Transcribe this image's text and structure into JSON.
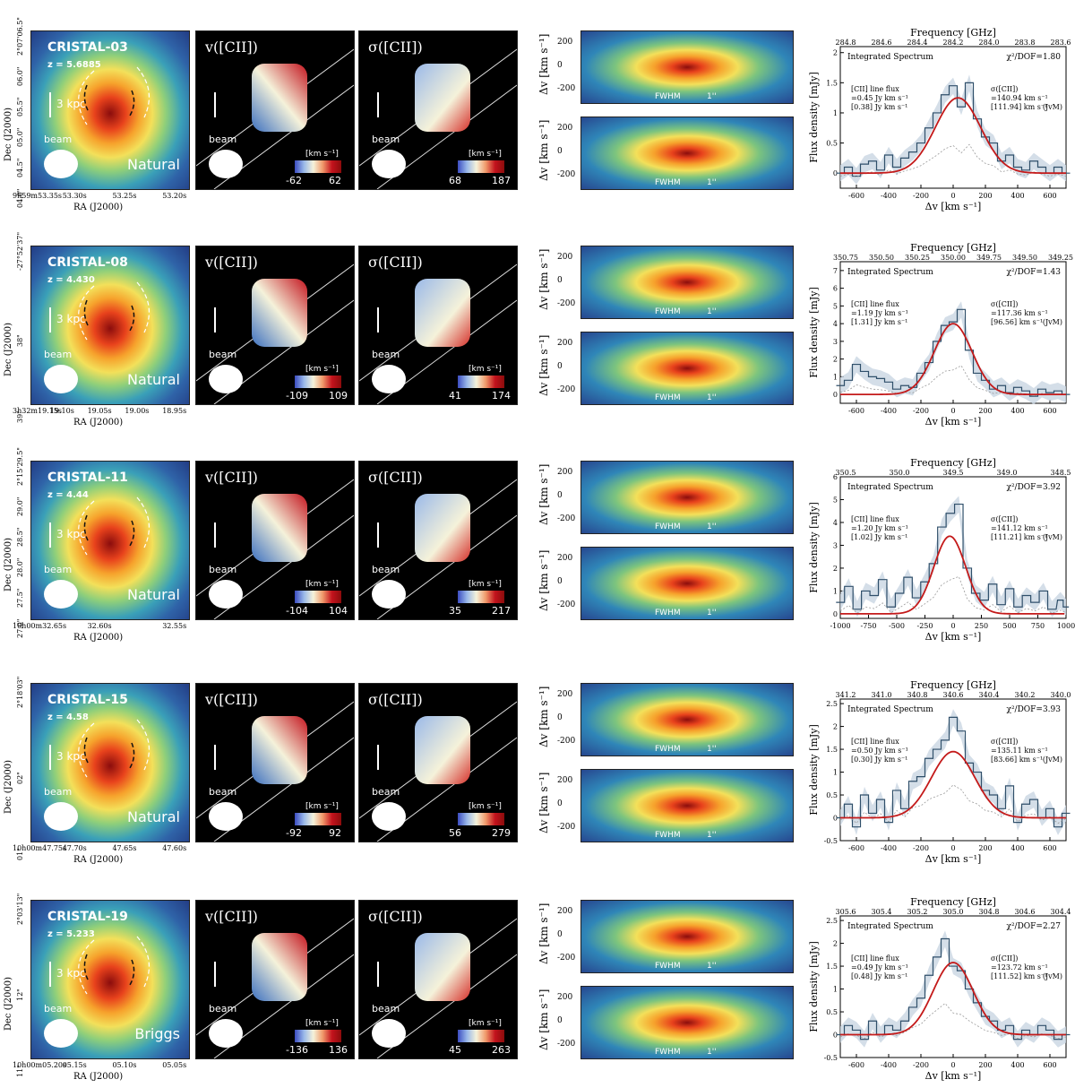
{
  "common": {
    "ra_label": "RA (J2000)",
    "dec_label": "Dec (J2000)",
    "vel_title": "v([CII])",
    "disp_title": "σ([CII])",
    "kpc_label": "3 kpc",
    "beam_label": "beam",
    "kms_unit": "[km s⁻¹]",
    "pv_ylabel": "Δv [km s⁻¹]",
    "pv_ticks": [
      "200",
      "0",
      "-200"
    ],
    "fwhm_label": "FWHM",
    "arcsec_label": "1''",
    "spec_xlabel": "Δv [km s⁻¹]",
    "spec_ylabel": "Flux density [mJy]",
    "spec_toplabel": "Frequency [GHz]",
    "spec_title": "Integrated Spectrum",
    "flux_label": "[CII] line flux",
    "sigma_label": "σ([CII])",
    "jvm_label": "(JvM)"
  },
  "chart_data": [
    {
      "type": "line",
      "name": "CRISTAL-03",
      "redshift": "z = 5.6885",
      "weighting": "Natural",
      "ra_ticks": [
        "9h59m53.35s",
        "53.30s",
        "53.25s",
        "53.20s"
      ],
      "dec_ticks": [
        "2°07'06.5\"",
        "06.0\"",
        "05.5\"",
        "05.0\"",
        "04.5\"",
        "04.0\""
      ],
      "vel_range": [
        "-62",
        "62"
      ],
      "disp_range": [
        "68",
        "187"
      ],
      "freq_ticks": [
        "284.8",
        "284.6",
        "284.4",
        "284.2",
        "284.0",
        "283.8",
        "283.6"
      ],
      "chi2": "χ²/DOF=1.80",
      "flux": "=0.45 Jy km s⁻¹",
      "flux_jvm": "[0.38] Jy km s⁻¹",
      "sigma": "=140.94 km s⁻¹",
      "sigma_jvm": "[111.94] km s⁻¹",
      "xlim": [
        -700,
        700
      ],
      "ylim": [
        -0.25,
        2.1
      ],
      "xticks": [
        -600,
        -400,
        -200,
        0,
        200,
        400,
        600
      ],
      "yticks": [
        0.0,
        0.5,
        1.0,
        1.5,
        2.0
      ],
      "gauss": {
        "amp": 1.25,
        "mu": 30,
        "sigma": 141
      },
      "spectrum_x": [
        -700,
        -650,
        -600,
        -550,
        -500,
        -450,
        -400,
        -350,
        -300,
        -250,
        -200,
        -150,
        -100,
        -50,
        0,
        50,
        100,
        150,
        200,
        250,
        300,
        350,
        400,
        450,
        500,
        550,
        600,
        650,
        700
      ],
      "spectrum_y": [
        0.0,
        0.1,
        -0.05,
        0.15,
        0.2,
        0.05,
        0.3,
        0.1,
        0.25,
        0.35,
        0.5,
        0.75,
        1.0,
        1.3,
        1.45,
        1.1,
        1.5,
        0.9,
        0.6,
        0.5,
        0.2,
        0.3,
        0.1,
        0.05,
        0.2,
        0.1,
        0.0,
        0.1,
        0.0
      ]
    },
    {
      "type": "line",
      "name": "CRISTAL-08",
      "redshift": "z = 4.430",
      "weighting": "Natural",
      "ra_ticks": [
        "3h32m19.15s",
        "19.10s",
        "19.05s",
        "19.00s",
        "18.95s"
      ],
      "dec_ticks": [
        "-27°52'37\"",
        "38\"",
        "39\""
      ],
      "vel_range": [
        "-109",
        "109"
      ],
      "disp_range": [
        "41",
        "174"
      ],
      "freq_ticks": [
        "350.75",
        "350.50",
        "350.25",
        "350.00",
        "349.75",
        "349.50",
        "349.25"
      ],
      "chi2": "χ²/DOF=1.43",
      "flux": "=1.19 Jy km s⁻¹",
      "flux_jvm": "[1.31] Jy km s⁻¹",
      "sigma": "=117.36 km s⁻¹",
      "sigma_jvm": "[96.56] km s⁻¹",
      "xlim": [
        -700,
        700
      ],
      "ylim": [
        -0.5,
        7.5
      ],
      "xticks": [
        -600,
        -400,
        -200,
        0,
        200,
        400,
        600
      ],
      "yticks": [
        0,
        1,
        2,
        3,
        4,
        5,
        6,
        7
      ],
      "gauss": {
        "amp": 4.0,
        "mu": 0,
        "sigma": 117
      },
      "spectrum_x": [
        -700,
        -650,
        -600,
        -550,
        -500,
        -450,
        -400,
        -350,
        -300,
        -250,
        -200,
        -150,
        -100,
        -50,
        0,
        50,
        100,
        150,
        200,
        250,
        300,
        350,
        400,
        450,
        500,
        550,
        600,
        650,
        700
      ],
      "spectrum_y": [
        0.5,
        0.8,
        1.7,
        1.3,
        1.0,
        0.9,
        0.7,
        0.3,
        0.5,
        0.4,
        1.2,
        1.8,
        3.0,
        3.9,
        4.1,
        4.8,
        2.5,
        1.2,
        0.8,
        0.3,
        0.5,
        0.1,
        0.4,
        0.2,
        -0.1,
        0.3,
        0.1,
        0.2,
        0.0
      ]
    },
    {
      "type": "line",
      "name": "CRISTAL-11",
      "redshift": "z = 4.44",
      "weighting": "Natural",
      "ra_ticks": [
        "10h00m32.65s",
        "32.60s",
        "32.55s"
      ],
      "dec_ticks": [
        "2°15'29.5\"",
        "29.0\"",
        "28.5\"",
        "28.0\"",
        "27.5\"",
        "27.0\""
      ],
      "vel_range": [
        "-104",
        "104"
      ],
      "disp_range": [
        "35",
        "217"
      ],
      "freq_ticks": [
        "350.5",
        "350.0",
        "349.5",
        "349.0",
        "348.5"
      ],
      "chi2": "χ²/DOF=3.92",
      "flux": "=1.20 Jy km s⁻¹",
      "flux_jvm": "[1.02] Jy km s⁻¹",
      "sigma": "=141.12 km s⁻¹",
      "sigma_jvm": "[111.21] km s⁻¹",
      "xlim": [
        -1000,
        1000
      ],
      "ylim": [
        -0.2,
        6.0
      ],
      "xticks": [
        -1000,
        -750,
        -500,
        -250,
        0,
        250,
        500,
        750,
        1000
      ],
      "yticks": [
        0,
        1,
        2,
        3,
        4,
        5,
        6
      ],
      "gauss": {
        "amp": 3.4,
        "mu": -30,
        "sigma": 141
      },
      "spectrum_x": [
        -1000,
        -925,
        -850,
        -775,
        -700,
        -625,
        -550,
        -475,
        -400,
        -325,
        -250,
        -175,
        -100,
        -25,
        50,
        125,
        200,
        275,
        350,
        425,
        500,
        575,
        650,
        725,
        800,
        875,
        950,
        1000
      ],
      "spectrum_y": [
        0.5,
        1.2,
        0.2,
        1.0,
        0.8,
        1.5,
        0.3,
        0.9,
        1.6,
        0.7,
        1.4,
        2.2,
        3.8,
        4.4,
        4.8,
        2.0,
        0.9,
        0.6,
        1.3,
        0.4,
        1.1,
        0.3,
        0.8,
        0.5,
        1.0,
        0.2,
        0.6,
        0.3
      ]
    },
    {
      "type": "line",
      "name": "CRISTAL-15",
      "redshift": "z = 4.58",
      "weighting": "Natural",
      "ra_ticks": [
        "10h00m47.75s",
        "47.70s",
        "47.65s",
        "47.60s"
      ],
      "dec_ticks": [
        "2°18'03\"",
        "02\"",
        "01\""
      ],
      "vel_range": [
        "-92",
        "92"
      ],
      "disp_range": [
        "56",
        "279"
      ],
      "freq_ticks": [
        "341.2",
        "341.0",
        "340.8",
        "340.6",
        "340.4",
        "340.2",
        "340.0"
      ],
      "chi2": "χ²/DOF=3.93",
      "flux": "=0.50 Jy km s⁻¹",
      "flux_jvm": "[0.30] Jy km s⁻¹",
      "sigma": "=135.11 km s⁻¹",
      "sigma_jvm": "[83.66] km s⁻¹",
      "xlim": [
        -700,
        700
      ],
      "ylim": [
        -0.5,
        2.6
      ],
      "xticks": [
        -600,
        -400,
        -200,
        0,
        200,
        400,
        600
      ],
      "yticks": [
        -0.5,
        0.0,
        0.5,
        1.0,
        1.5,
        2.0,
        2.5
      ],
      "gauss": {
        "amp": 1.45,
        "mu": 0,
        "sigma": 135
      },
      "spectrum_x": [
        -700,
        -650,
        -600,
        -550,
        -500,
        -450,
        -400,
        -350,
        -300,
        -250,
        -200,
        -150,
        -100,
        -50,
        0,
        50,
        100,
        150,
        200,
        250,
        300,
        350,
        400,
        450,
        500,
        550,
        600,
        650,
        700
      ],
      "spectrum_y": [
        0.0,
        0.3,
        -0.2,
        0.5,
        0.1,
        0.4,
        -0.1,
        0.6,
        0.2,
        0.8,
        0.9,
        1.3,
        1.5,
        1.7,
        2.2,
        1.9,
        1.2,
        1.0,
        0.6,
        0.5,
        0.2,
        0.7,
        -0.1,
        0.3,
        0.4,
        0.0,
        0.2,
        -0.2,
        0.1
      ]
    },
    {
      "type": "line",
      "name": "CRISTAL-19",
      "redshift": "z = 5.233",
      "weighting": "Briggs",
      "ra_ticks": [
        "10h00m05.20s",
        "05.15s",
        "05.10s",
        "05.05s"
      ],
      "dec_ticks": [
        "2°03'13\"",
        "12\"",
        "11\""
      ],
      "vel_range": [
        "-136",
        "136"
      ],
      "disp_range": [
        "45",
        "263"
      ],
      "freq_ticks": [
        "305.6",
        "305.4",
        "305.2",
        "305.0",
        "304.8",
        "304.6",
        "304.4"
      ],
      "chi2": "χ²/DOF=2.27",
      "flux": "=0.49 Jy km s⁻¹",
      "flux_jvm": "[0.48] Jy km s⁻¹",
      "sigma": "=123.72 km s⁻¹",
      "sigma_jvm": "[111.52] km s⁻¹",
      "xlim": [
        -700,
        700
      ],
      "ylim": [
        -0.5,
        2.6
      ],
      "xticks": [
        -600,
        -400,
        -200,
        0,
        200,
        400,
        600
      ],
      "yticks": [
        -0.5,
        0.0,
        0.5,
        1.0,
        1.5,
        2.0,
        2.5
      ],
      "gauss": {
        "amp": 1.58,
        "mu": 0,
        "sigma": 124
      },
      "spectrum_x": [
        -700,
        -650,
        -600,
        -550,
        -500,
        -450,
        -400,
        -350,
        -300,
        -250,
        -200,
        -150,
        -100,
        -50,
        0,
        50,
        100,
        150,
        200,
        250,
        300,
        350,
        400,
        450,
        500,
        550,
        600,
        650,
        700
      ],
      "spectrum_y": [
        0.0,
        0.2,
        0.1,
        -0.1,
        0.3,
        0.0,
        0.2,
        0.1,
        0.3,
        0.6,
        0.8,
        1.3,
        1.7,
        2.1,
        1.5,
        1.4,
        1.0,
        0.7,
        0.4,
        0.3,
        0.1,
        0.2,
        -0.1,
        0.1,
        0.0,
        0.2,
        0.1,
        -0.1,
        0.0
      ]
    }
  ]
}
